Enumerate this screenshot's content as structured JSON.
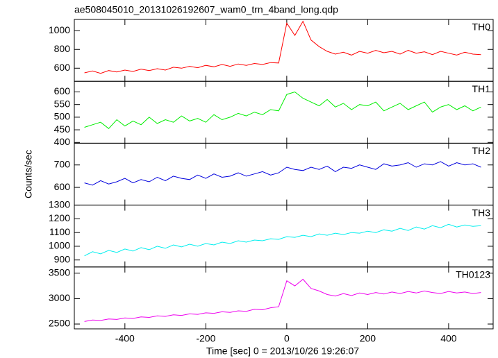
{
  "chart_data": {
    "type": "line",
    "title": "ae508045010_20131026192607_wam0_trn_4band_long.qdp",
    "xlabel": "Time [sec] 0 = 2013/10/26 19:26:07",
    "ylabel": "Counts/sec",
    "xlim": [
      -525,
      510
    ],
    "xticks": [
      -400,
      -200,
      0,
      200,
      400
    ],
    "x": [
      -500,
      -480,
      -460,
      -440,
      -420,
      -400,
      -380,
      -360,
      -340,
      -320,
      -300,
      -280,
      -260,
      -240,
      -220,
      -200,
      -180,
      -160,
      -140,
      -120,
      -100,
      -80,
      -60,
      -40,
      -20,
      0,
      20,
      40,
      60,
      80,
      100,
      120,
      140,
      160,
      180,
      200,
      220,
      240,
      260,
      280,
      300,
      320,
      340,
      360,
      380,
      400,
      420,
      440,
      460,
      480
    ],
    "series": [
      {
        "name": "TH0",
        "color": "#ff0000",
        "ylim": [
          460,
          1120
        ],
        "yticks": [
          600,
          800,
          1000
        ],
        "values": [
          550,
          570,
          545,
          575,
          560,
          580,
          565,
          590,
          575,
          595,
          580,
          610,
          600,
          620,
          605,
          630,
          615,
          640,
          620,
          645,
          630,
          650,
          640,
          660,
          655,
          1080,
          950,
          1100,
          900,
          830,
          780,
          750,
          770,
          740,
          780,
          760,
          790,
          765,
          780,
          750,
          790,
          760,
          775,
          745,
          780,
          760,
          740,
          770,
          750,
          745
        ]
      },
      {
        "name": "TH1",
        "color": "#00ee00",
        "ylim": [
          397,
          642
        ],
        "yticks": [
          400,
          450,
          500,
          550,
          600
        ],
        "values": [
          460,
          470,
          480,
          455,
          490,
          465,
          485,
          470,
          500,
          475,
          490,
          480,
          505,
          485,
          495,
          480,
          510,
          490,
          500,
          515,
          505,
          520,
          510,
          530,
          525,
          590,
          600,
          575,
          560,
          545,
          570,
          540,
          555,
          530,
          550,
          545,
          560,
          525,
          540,
          555,
          530,
          545,
          560,
          520,
          540,
          550,
          530,
          545,
          525,
          540
        ]
      },
      {
        "name": "TH2",
        "color": "#0000dd",
        "ylim": [
          521,
          797
        ],
        "yticks": [
          600,
          700
        ],
        "values": [
          620,
          610,
          630,
          615,
          625,
          640,
          620,
          635,
          625,
          645,
          630,
          650,
          640,
          635,
          655,
          640,
          660,
          645,
          650,
          665,
          650,
          660,
          670,
          655,
          665,
          690,
          680,
          675,
          690,
          680,
          695,
          670,
          690,
          685,
          700,
          690,
          680,
          705,
          695,
          700,
          710,
          690,
          705,
          700,
          715,
          695,
          710,
          700,
          705,
          690
        ]
      },
      {
        "name": "TH3",
        "color": "#00eeee",
        "ylim": [
          849,
          1300
        ],
        "yticks": [
          900,
          1000,
          1100,
          1200,
          1300
        ],
        "values": [
          930,
          960,
          945,
          970,
          955,
          980,
          965,
          990,
          975,
          1000,
          985,
          1010,
          995,
          1015,
          1000,
          1020,
          1010,
          1030,
          1020,
          1040,
          1030,
          1045,
          1040,
          1055,
          1050,
          1070,
          1065,
          1080,
          1070,
          1090,
          1080,
          1095,
          1085,
          1100,
          1095,
          1110,
          1100,
          1120,
          1110,
          1130,
          1115,
          1140,
          1125,
          1150,
          1135,
          1160,
          1140,
          1155,
          1145,
          1150
        ]
      },
      {
        "name": "TH0123",
        "color": "#ee00ee",
        "ylim": [
          2405,
          3622
        ],
        "yticks": [
          2500,
          3000,
          3500
        ],
        "values": [
          2550,
          2580,
          2570,
          2600,
          2590,
          2620,
          2610,
          2640,
          2630,
          2660,
          2650,
          2680,
          2670,
          2700,
          2690,
          2720,
          2710,
          2740,
          2730,
          2760,
          2750,
          2790,
          2780,
          2820,
          2840,
          3350,
          3250,
          3380,
          3200,
          3150,
          3080,
          3050,
          3100,
          3060,
          3110,
          3080,
          3120,
          3090,
          3130,
          3100,
          3140,
          3110,
          3150,
          3120,
          3100,
          3140,
          3110,
          3130,
          3100,
          3120
        ]
      }
    ]
  }
}
